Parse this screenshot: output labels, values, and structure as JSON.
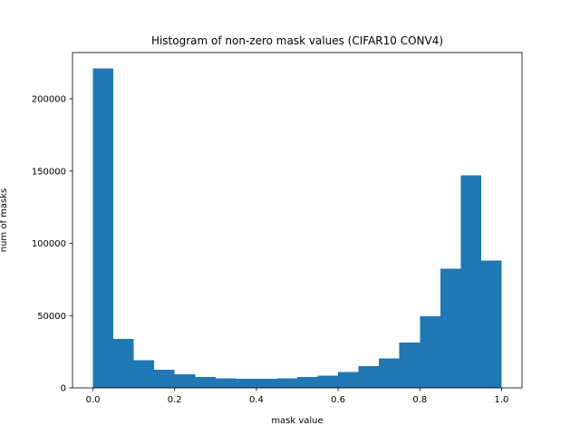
{
  "chart_data": {
    "type": "bar",
    "title": "Histogram of non-zero mask values (CIFAR10 CONV4)",
    "xlabel": "mask value",
    "ylabel": "num of masks",
    "xlim": [
      -0.05,
      1.05
    ],
    "ylim": [
      0,
      232000
    ],
    "bin_edges": [
      0.0,
      0.05,
      0.1,
      0.15,
      0.2,
      0.25,
      0.3,
      0.35,
      0.4,
      0.45,
      0.5,
      0.55,
      0.6,
      0.65,
      0.7,
      0.75,
      0.8,
      0.85,
      0.9,
      0.95,
      1.0
    ],
    "values": [
      221000,
      34000,
      19000,
      12500,
      9500,
      7500,
      6500,
      6300,
      6300,
      6500,
      7500,
      8500,
      11000,
      15000,
      20500,
      31500,
      49500,
      82500,
      147000,
      88000
    ],
    "xticks": [
      0.0,
      0.2,
      0.4,
      0.6,
      0.8,
      1.0
    ],
    "xtick_labels": [
      "0.0",
      "0.2",
      "0.4",
      "0.6",
      "0.8",
      "1.0"
    ],
    "yticks": [
      0,
      50000,
      100000,
      150000,
      200000
    ],
    "ytick_labels": [
      "0",
      "50000",
      "100000",
      "150000",
      "200000"
    ],
    "bar_color": "#1f77b4",
    "grid": false,
    "legend": "none"
  }
}
